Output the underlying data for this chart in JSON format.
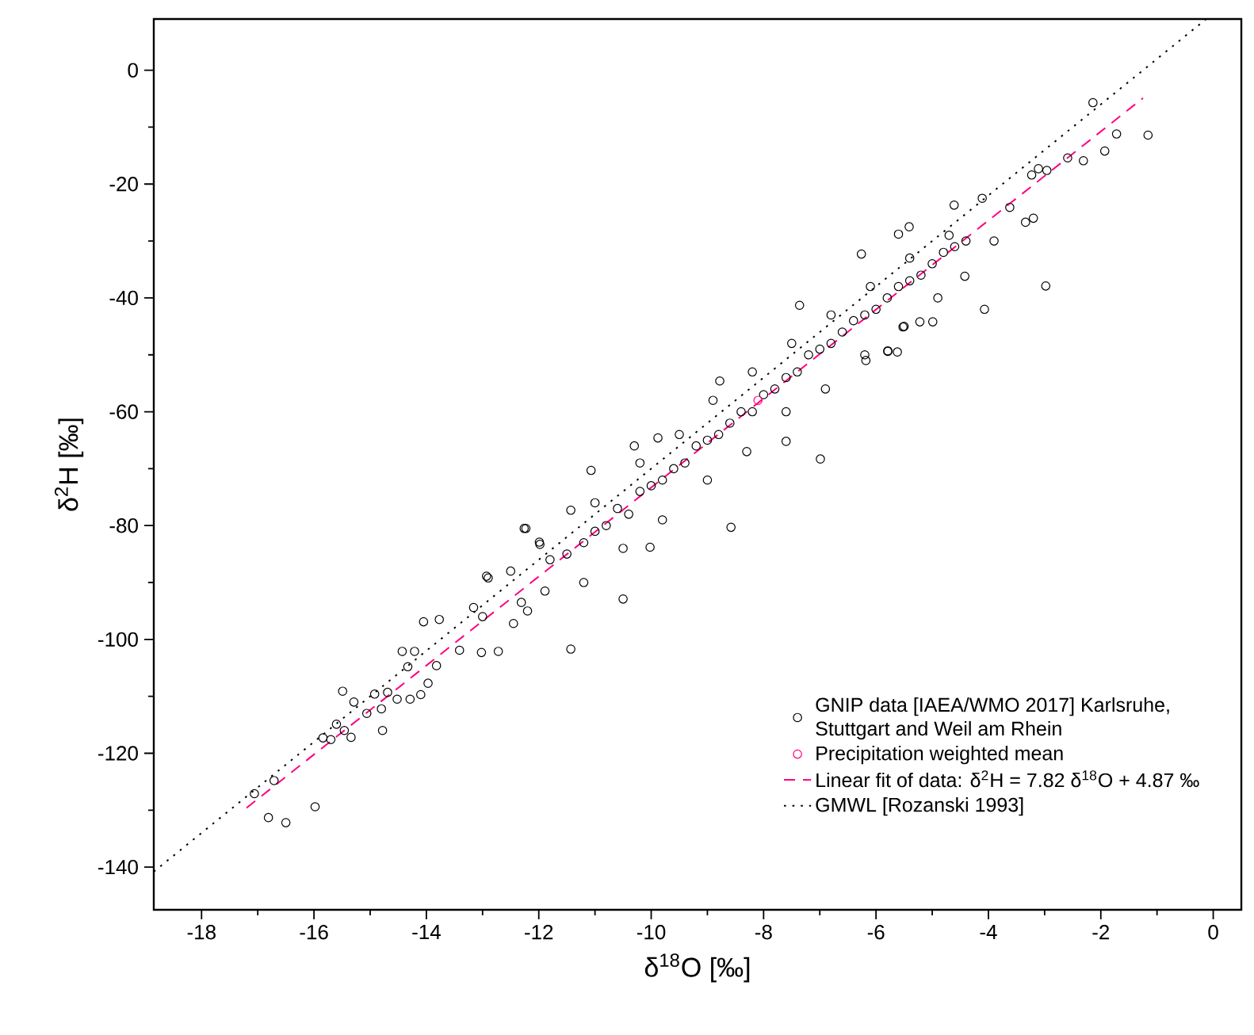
{
  "chart_data": {
    "type": "scatter",
    "xlabel": "δ$^{18}$O [‰]",
    "ylabel": "δ$^{2}$H [‰]",
    "xlim": [
      -18.85,
      0.5
    ],
    "ylim": [
      -147.5,
      9
    ],
    "xticks": [
      -18,
      -16,
      -14,
      -12,
      -10,
      -8,
      -6,
      -4,
      -2,
      0
    ],
    "yticks": [
      -140,
      -120,
      -100,
      -80,
      -60,
      -40,
      -20,
      0
    ],
    "legend": "bottom right",
    "series": [
      {
        "name": "GNIP data [IAEA/WMO 2017] Karlsruhe, Stuttgart and Weil am Rhein",
        "marker": "circle",
        "color": "#000000",
        "x": [
          -17.06,
          -16.71,
          -16.81,
          -16.5,
          -15.98,
          -15.84,
          -15.7,
          -15.6,
          -15.49,
          -15.46,
          -15.34,
          -15.29,
          -15.06,
          -14.92,
          -14.78,
          -14.8,
          -14.69,
          -14.52,
          -14.43,
          -14.29,
          -14.33,
          -14.21,
          -14.1,
          -13.97,
          -14.05,
          -13.82,
          -13.77,
          -13.41,
          -13.02,
          -12.72,
          -12.9,
          -13.16,
          -12.26,
          -12.31,
          -11.89,
          -11.98,
          -12.45,
          -11.43,
          -10.5,
          -12.23,
          -10.02,
          -8.58,
          -11.07,
          -10.3,
          -6.99,
          -7.6,
          -7.36,
          -5.79,
          -8.78,
          -9.88,
          -11.43,
          -11.99,
          -12.93,
          -2.14,
          -1.72,
          -1.16,
          -1.93,
          -2.31,
          -2.59,
          -2.98,
          -4.07,
          -3.23,
          -3.11,
          -3.2,
          -3.34,
          -4.11,
          -4.61,
          -5.41,
          -5.6,
          -6.26,
          -4.99,
          -5.22,
          -5.52,
          -5.79,
          -5.62,
          -6.18,
          -3.9,
          -4.42,
          -3.62,
          -2.96,
          -11.5,
          -11.2,
          -11.0,
          -10.8,
          -10.6,
          -10.4,
          -10.2,
          -10.0,
          -9.8,
          -9.6,
          -9.4,
          -9.2,
          -9.0,
          -8.8,
          -8.6,
          -8.4,
          -8.2,
          -8.0,
          -7.8,
          -7.6,
          -7.4,
          -7.2,
          -7.0,
          -6.8,
          -6.6,
          -6.4,
          -6.2,
          -6.0,
          -5.8,
          -5.6,
          -5.4,
          -5.2,
          -5.0,
          -4.8,
          -4.6,
          -4.4,
          -11.0,
          -10.2,
          -9.5,
          -8.9,
          -8.2,
          -7.5,
          -6.8,
          -6.1,
          -5.4,
          -4.7,
          -12.5,
          -11.8,
          -11.2,
          -10.5,
          -9.8,
          -9.0,
          -8.3,
          -7.6,
          -6.9,
          -6.2,
          -5.5,
          -4.9,
          -12.2,
          -13.0
        ],
        "values": [
          -127.1,
          -124.8,
          -131.3,
          -132.2,
          -129.4,
          -117.3,
          -117.6,
          -114.9,
          -109.1,
          -116.0,
          -117.2,
          -111.0,
          -113.0,
          -109.6,
          -116.0,
          -112.2,
          -109.3,
          -110.5,
          -102.1,
          -110.5,
          -104.8,
          -102.1,
          -109.7,
          -107.7,
          -96.9,
          -104.6,
          -96.5,
          -101.9,
          -102.3,
          -102.1,
          -89.2,
          -94.4,
          -80.5,
          -93.5,
          -91.5,
          -83.3,
          -97.2,
          -101.7,
          -92.9,
          -80.5,
          -83.8,
          -80.3,
          -70.3,
          -66.0,
          -68.3,
          -65.2,
          -41.3,
          -49.3,
          -54.6,
          -64.6,
          -77.3,
          -82.9,
          -88.9,
          -5.7,
          -11.2,
          -11.4,
          -14.2,
          -15.9,
          -15.4,
          -37.9,
          -42.0,
          -18.4,
          -17.3,
          -26.0,
          -26.7,
          -22.5,
          -23.7,
          -27.5,
          -28.8,
          -32.3,
          -44.2,
          -44.2,
          -45.1,
          -49.4,
          -49.5,
          -51.0,
          -30.0,
          -36.2,
          -24.1,
          -17.6,
          -85,
          -83,
          -81,
          -80,
          -77,
          -78,
          -74,
          -73,
          -72,
          -70,
          -69,
          -66,
          -65,
          -64,
          -62,
          -60,
          -60,
          -57,
          -56,
          -54,
          -53,
          -50,
          -49,
          -48,
          -46,
          -44,
          -43,
          -42,
          -40,
          -38,
          -37,
          -36,
          -34,
          -32,
          -31,
          -30,
          -76,
          -69,
          -64,
          -58,
          -53,
          -48,
          -43,
          -38,
          -33,
          -29,
          -88,
          -86,
          -90,
          -84,
          -79,
          -72,
          -67,
          -60,
          -56,
          -50,
          -45,
          -40,
          -95,
          -96
        ]
      },
      {
        "name": "Precipitation weighted mean",
        "marker": "circle",
        "color": "#ff0080",
        "x": [
          -8.1
        ],
        "values": [
          -58
        ]
      },
      {
        "name": "Linear fit of data: δ$^{2}$H = 7.82 δ$^{18}$O + 4.87 ‰",
        "type": "line",
        "marker": "none",
        "line_style": "dashed",
        "color": "#ff0080",
        "x": [
          -17.2,
          -1.25
        ],
        "values": [
          -129.6,
          -4.9
        ]
      },
      {
        "name": "GMWL [Rozanski 1993]",
        "type": "line",
        "marker": "none",
        "line_style": "dotted",
        "color": "#000000",
        "x": [
          -18.85,
          -0.125
        ],
        "values": [
          -140.8,
          9
        ]
      }
    ]
  }
}
